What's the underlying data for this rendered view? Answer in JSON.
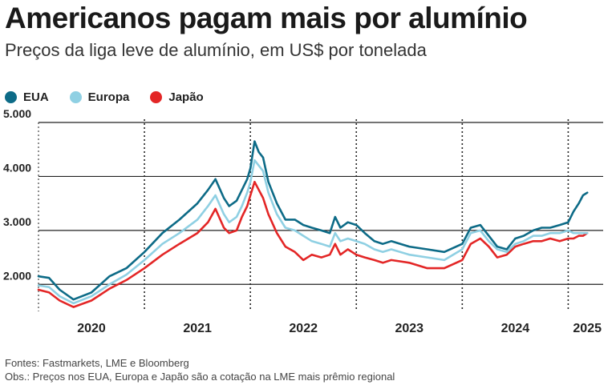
{
  "title": "Americanos pagam mais por alumínio",
  "subtitle": "Preços da liga leve de alumínio, em US$ por tonelada",
  "legend": [
    {
      "label": "EUA",
      "color": "#0d6b87"
    },
    {
      "label": "Europa",
      "color": "#8fd0e3"
    },
    {
      "label": "Japão",
      "color": "#e32626"
    }
  ],
  "footer": {
    "sources": "Fontes: Fastmarkets, LME e Bloomberg",
    "note": "Obs.: Preços nos EUA, Europa e Japão são a cotação na LME mais prêmio regional"
  },
  "chart_data": {
    "type": "line",
    "title": "Americanos pagam mais por alumínio",
    "subtitle": "Preços da liga leve de alumínio, em US$ por tonelada",
    "ylim": [
      1500,
      5000
    ],
    "xlim": [
      2020.0,
      2025.33
    ],
    "yticks": [
      2000,
      3000,
      4000,
      5000
    ],
    "ytick_labels": [
      "2.000",
      "3.000",
      "4.000",
      "5.000"
    ],
    "xticks": [
      {
        "label": "2020",
        "value": 2020.0
      },
      {
        "label": "2021",
        "value": 2021.0
      },
      {
        "label": "2022",
        "value": 2022.0
      },
      {
        "label": "2023",
        "value": 2023.0
      },
      {
        "label": "2024",
        "value": 2024.0
      },
      {
        "label": "2025",
        "value": 2025.0
      }
    ],
    "grid": "horizontal lines; vertical dotted lines at year starts",
    "legend_position": "top-left",
    "series": [
      {
        "name": "EUA",
        "color": "#0d6b87",
        "x": [
          2020.0,
          2020.1,
          2020.2,
          2020.33,
          2020.5,
          2020.67,
          2020.83,
          2021.0,
          2021.17,
          2021.33,
          2021.5,
          2021.6,
          2021.67,
          2021.75,
          2021.8,
          2021.87,
          2021.92,
          2021.97,
          2022.0,
          2022.04,
          2022.08,
          2022.12,
          2022.17,
          2022.25,
          2022.33,
          2022.42,
          2022.5,
          2022.58,
          2022.67,
          2022.75,
          2022.8,
          2022.85,
          2022.92,
          2023.0,
          2023.08,
          2023.17,
          2023.25,
          2023.33,
          2023.5,
          2023.67,
          2023.83,
          2024.0,
          2024.08,
          2024.17,
          2024.25,
          2024.33,
          2024.42,
          2024.5,
          2024.58,
          2024.67,
          2024.75,
          2024.83,
          2024.92,
          2025.0,
          2025.05,
          2025.1,
          2025.14,
          2025.18
        ],
        "y": [
          2150,
          2120,
          1900,
          1720,
          1850,
          2150,
          2300,
          2600,
          2950,
          3200,
          3500,
          3750,
          3950,
          3600,
          3450,
          3550,
          3750,
          3950,
          4150,
          4650,
          4450,
          4350,
          3900,
          3500,
          3200,
          3200,
          3100,
          3050,
          3000,
          2950,
          3250,
          3050,
          3150,
          3100,
          2950,
          2800,
          2750,
          2800,
          2700,
          2650,
          2600,
          2750,
          3050,
          3100,
          2900,
          2700,
          2650,
          2850,
          2900,
          3000,
          3050,
          3050,
          3100,
          3150,
          3350,
          3500,
          3650,
          3700
        ]
      },
      {
        "name": "Europa",
        "color": "#8fd0e3",
        "x": [
          2020.0,
          2020.1,
          2020.2,
          2020.33,
          2020.5,
          2020.67,
          2020.83,
          2021.0,
          2021.17,
          2021.33,
          2021.5,
          2021.6,
          2021.67,
          2021.75,
          2021.8,
          2021.87,
          2021.92,
          2021.97,
          2022.0,
          2022.04,
          2022.08,
          2022.12,
          2022.17,
          2022.25,
          2022.33,
          2022.42,
          2022.5,
          2022.58,
          2022.67,
          2022.75,
          2022.8,
          2022.85,
          2022.92,
          2023.0,
          2023.08,
          2023.17,
          2023.25,
          2023.33,
          2023.5,
          2023.67,
          2023.83,
          2024.0,
          2024.08,
          2024.17,
          2024.25,
          2024.33,
          2024.42,
          2024.5,
          2024.58,
          2024.67,
          2024.75,
          2024.83,
          2024.92,
          2025.0,
          2025.05,
          2025.1,
          2025.14,
          2025.18
        ],
        "y": [
          1980,
          1950,
          1780,
          1650,
          1780,
          2000,
          2180,
          2450,
          2750,
          2950,
          3200,
          3450,
          3650,
          3300,
          3150,
          3250,
          3450,
          3700,
          3900,
          4300,
          4200,
          4100,
          3700,
          3300,
          3050,
          3000,
          2900,
          2800,
          2750,
          2700,
          2950,
          2800,
          2850,
          2800,
          2750,
          2650,
          2600,
          2650,
          2550,
          2500,
          2450,
          2650,
          2950,
          3000,
          2800,
          2650,
          2600,
          2750,
          2800,
          2900,
          2900,
          2950,
          2950,
          3000,
          2950,
          2950,
          2950,
          2950
        ]
      },
      {
        "name": "Japão",
        "color": "#e32626",
        "x": [
          2020.0,
          2020.1,
          2020.2,
          2020.33,
          2020.5,
          2020.67,
          2020.83,
          2021.0,
          2021.17,
          2021.33,
          2021.5,
          2021.6,
          2021.67,
          2021.75,
          2021.8,
          2021.87,
          2021.92,
          2021.97,
          2022.0,
          2022.04,
          2022.08,
          2022.12,
          2022.17,
          2022.25,
          2022.33,
          2022.42,
          2022.5,
          2022.58,
          2022.67,
          2022.75,
          2022.8,
          2022.85,
          2022.92,
          2023.0,
          2023.08,
          2023.17,
          2023.25,
          2023.33,
          2023.5,
          2023.67,
          2023.83,
          2024.0,
          2024.08,
          2024.17,
          2024.25,
          2024.33,
          2024.42,
          2024.5,
          2024.58,
          2024.67,
          2024.75,
          2024.83,
          2024.92,
          2025.0,
          2025.05,
          2025.1,
          2025.14,
          2025.18
        ],
        "y": [
          1900,
          1850,
          1700,
          1580,
          1700,
          1920,
          2080,
          2300,
          2550,
          2750,
          2950,
          3150,
          3400,
          3050,
          2950,
          3000,
          3250,
          3450,
          3650,
          3900,
          3750,
          3600,
          3300,
          2950,
          2700,
          2600,
          2450,
          2550,
          2500,
          2550,
          2750,
          2550,
          2650,
          2550,
          2500,
          2450,
          2400,
          2450,
          2400,
          2300,
          2300,
          2450,
          2750,
          2850,
          2700,
          2500,
          2550,
          2700,
          2750,
          2800,
          2800,
          2850,
          2800,
          2850,
          2850,
          2900,
          2900,
          2950
        ]
      }
    ]
  }
}
